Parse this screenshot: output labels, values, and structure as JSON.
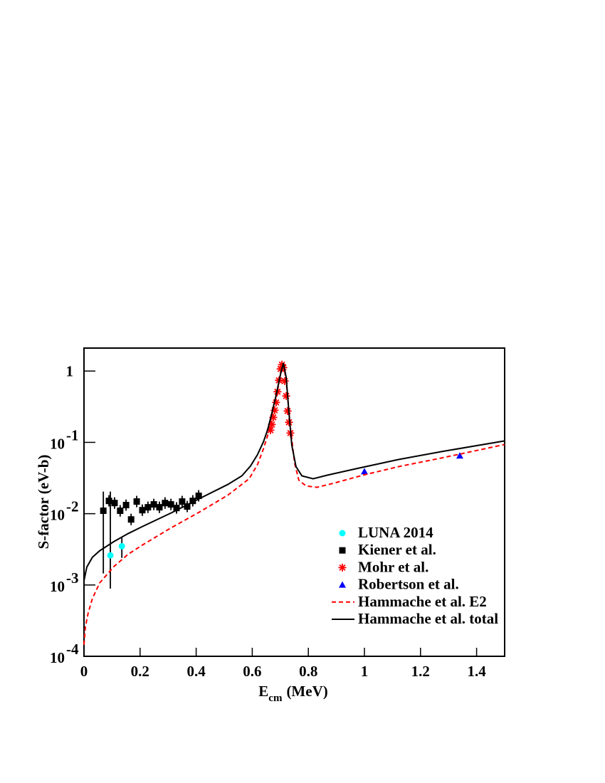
{
  "chart_data": {
    "type": "scatter",
    "xlabel": {
      "text": "E",
      "subscript": "cm",
      "unit": "(MeV)"
    },
    "ylabel": "S-factor (eV-b)",
    "xlim": [
      0,
      1.5
    ],
    "ylim": [
      0.0001,
      2.1
    ],
    "log_y": true,
    "legend": "lower-right",
    "xticks": [
      0,
      0.2,
      0.4,
      0.6,
      0.8,
      1,
      1.2,
      1.4
    ],
    "yticks": [
      {
        "value": 0.0001,
        "label": "10",
        "exponent": "-4"
      },
      {
        "value": 0.001,
        "label": "10",
        "exponent": "-3"
      },
      {
        "value": 0.01,
        "label": "10",
        "exponent": "-2"
      },
      {
        "value": 0.1,
        "label": "10",
        "exponent": "-1"
      },
      1
    ],
    "series": [
      {
        "name": "LUNA 2014",
        "style": "marker",
        "marker": "circle",
        "color": "#00ffff",
        "x": [
          0.094,
          0.135
        ],
        "values": [
          0.0026,
          0.0035
        ],
        "yerr_low": [
          0.00089,
          0.0024
        ],
        "yerr_high": [
          0.0204,
          0.0046
        ]
      },
      {
        "name": "Kiener et al.",
        "style": "marker",
        "marker": "square",
        "color": "#000000",
        "x": [
          0.069,
          0.089,
          0.109,
          0.129,
          0.15,
          0.168,
          0.188,
          0.208,
          0.228,
          0.249,
          0.269,
          0.289,
          0.31,
          0.33,
          0.35,
          0.368,
          0.388,
          0.409
        ],
        "values": [
          0.011,
          0.0151,
          0.0141,
          0.011,
          0.0132,
          0.0083,
          0.0148,
          0.0112,
          0.0123,
          0.0135,
          0.0123,
          0.0141,
          0.0135,
          0.012,
          0.0148,
          0.0126,
          0.0151,
          0.0178
        ],
        "yerr_low": [
          0.00145,
          0.0126,
          0.0117,
          0.0091,
          0.011,
          0.0069,
          0.0123,
          0.0093,
          0.0102,
          0.0112,
          0.0102,
          0.0117,
          0.0112,
          0.01,
          0.0123,
          0.0105,
          0.0126,
          0.0148
        ],
        "yerr_high": [
          0.0204,
          0.0182,
          0.017,
          0.0132,
          0.0158,
          0.01,
          0.0178,
          0.0135,
          0.0148,
          0.0162,
          0.0148,
          0.017,
          0.0162,
          0.0145,
          0.0178,
          0.0151,
          0.0182,
          0.0214
        ]
      },
      {
        "name": "Mohr et al.",
        "style": "marker",
        "marker": "star",
        "color": "#ff0000",
        "x": [
          0.665,
          0.67,
          0.675,
          0.68,
          0.685,
          0.69,
          0.695,
          0.701,
          0.706,
          0.711,
          0.716,
          0.721,
          0.726,
          0.731,
          0.736
        ],
        "values": [
          0.148,
          0.178,
          0.224,
          0.282,
          0.363,
          0.513,
          0.741,
          1.07,
          1.23,
          1.12,
          0.724,
          0.447,
          0.275,
          0.191,
          0.135
        ]
      },
      {
        "name": "Robertson et al.",
        "style": "marker",
        "marker": "triangle",
        "color": "#0000ff",
        "x": [
          1.0,
          1.34
        ],
        "values": [
          0.039,
          0.065
        ]
      },
      {
        "name": "Hammache et al. E2",
        "style": "line",
        "dash": true,
        "color": "#ff0000",
        "x": [
          0,
          0.005,
          0.015,
          0.03,
          0.056,
          0.107,
          0.157,
          0.208,
          0.31,
          0.411,
          0.513,
          0.589,
          0.619,
          0.64,
          0.66,
          0.68,
          0.701,
          0.711,
          0.721,
          0.736,
          0.751,
          0.766,
          0.792,
          0.83,
          0.893,
          0.995,
          1.122,
          1.274,
          1.5
        ],
        "values": [
          0.000145,
          0.000257,
          0.000407,
          0.000646,
          0.00107,
          0.00182,
          0.00269,
          0.00363,
          0.00631,
          0.0105,
          0.0182,
          0.0309,
          0.049,
          0.0813,
          0.145,
          0.324,
          0.912,
          1.29,
          0.724,
          0.162,
          0.0513,
          0.0295,
          0.0245,
          0.0234,
          0.0269,
          0.0347,
          0.0457,
          0.0603,
          0.0933
        ]
      },
      {
        "name": "Hammache et al. total",
        "style": "line",
        "dash": false,
        "color": "#000000",
        "x": [
          0,
          0.01,
          0.03,
          0.056,
          0.107,
          0.157,
          0.208,
          0.31,
          0.411,
          0.513,
          0.563,
          0.594,
          0.619,
          0.64,
          0.655,
          0.67,
          0.685,
          0.701,
          0.711,
          0.721,
          0.731,
          0.741,
          0.756,
          0.777,
          0.817,
          0.868,
          0.97,
          1.122,
          1.274,
          1.5
        ],
        "values": [
          0.00115,
          0.00178,
          0.00245,
          0.00302,
          0.00407,
          0.00525,
          0.0066,
          0.0102,
          0.0162,
          0.0257,
          0.0339,
          0.0468,
          0.0676,
          0.102,
          0.151,
          0.257,
          0.457,
          0.912,
          1.29,
          0.813,
          0.257,
          0.0912,
          0.0457,
          0.0339,
          0.0309,
          0.0347,
          0.0427,
          0.0575,
          0.0741,
          0.105
        ]
      }
    ]
  }
}
